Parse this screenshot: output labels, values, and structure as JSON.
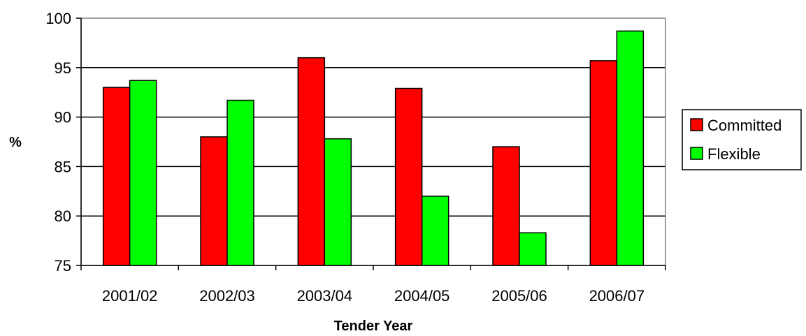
{
  "chart_data": {
    "type": "bar",
    "title": "",
    "xlabel": "Tender Year",
    "ylabel": "%",
    "categories": [
      "2001/02",
      "2002/03",
      "2003/04",
      "2004/05",
      "2005/06",
      "2006/07"
    ],
    "series": [
      {
        "name": "Committed",
        "color": "#ff0000",
        "values": [
          93.0,
          88.0,
          96.0,
          92.9,
          87.0,
          95.7
        ]
      },
      {
        "name": "Flexible",
        "color": "#00ff00",
        "values": [
          93.7,
          91.7,
          87.8,
          82.0,
          78.3,
          98.7
        ]
      }
    ],
    "ylim": [
      75,
      100
    ],
    "yticks": [
      "75",
      "80",
      "85",
      "90",
      "95",
      "100"
    ],
    "grid": true,
    "legend": "right"
  }
}
